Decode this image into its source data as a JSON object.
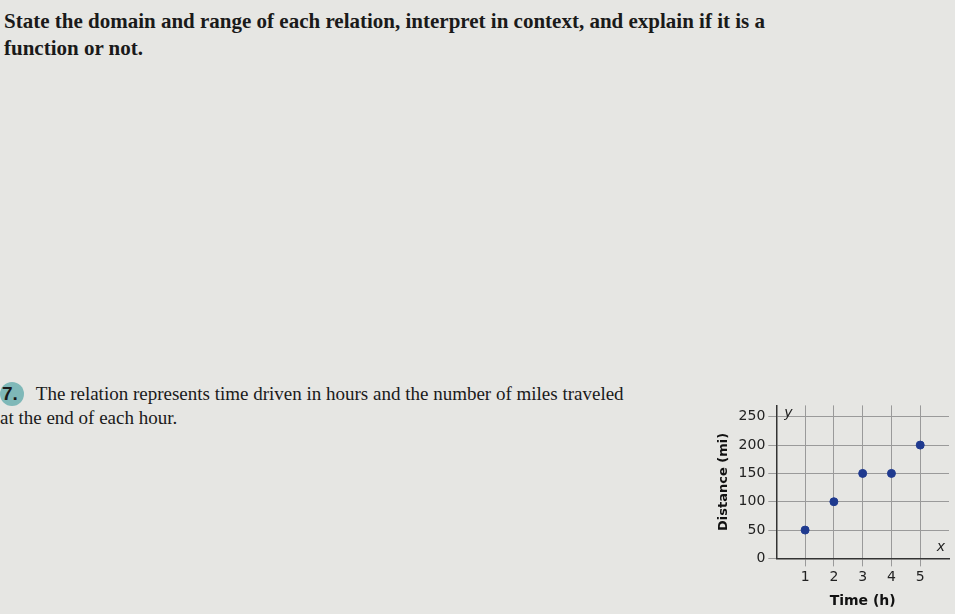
{
  "instructions": "State the domain and range of each relation, interpret in context, and explain if it is a function or not.",
  "problem": {
    "number": "7.",
    "text": "The relation represents time driven in hours and the number of miles traveled at the end of each hour."
  },
  "chart_data": {
    "type": "scatter",
    "xlabel": "Time (h)",
    "ylabel": "Distance (mi)",
    "axis_symbols": {
      "x": "x",
      "y": "y"
    },
    "x": [
      1,
      2,
      3,
      4,
      5
    ],
    "values": [
      50,
      100,
      150,
      150,
      200
    ],
    "color": "#1f3a8f",
    "xlim": [
      0,
      6
    ],
    "ylim": [
      0,
      270
    ],
    "xticks": [
      1,
      2,
      3,
      4,
      5
    ],
    "yticks": [
      0,
      50,
      100,
      150,
      200,
      250
    ],
    "grid": true
  }
}
